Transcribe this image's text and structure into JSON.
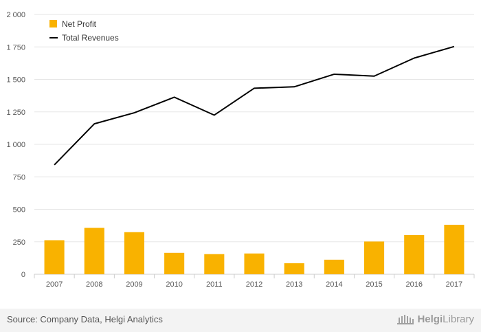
{
  "chart_data": {
    "type": "bar",
    "categories": [
      "2007",
      "2008",
      "2009",
      "2010",
      "2011",
      "2012",
      "2013",
      "2014",
      "2015",
      "2016",
      "2017"
    ],
    "series": [
      {
        "name": "Net Profit",
        "kind": "bar",
        "color": "#f9b200",
        "values": [
          262,
          357,
          324,
          165,
          155,
          160,
          85,
          112,
          252,
          302,
          381
        ]
      },
      {
        "name": "Total Revenues",
        "kind": "line",
        "color": "#000000",
        "values": [
          842,
          1158,
          1243,
          1363,
          1225,
          1432,
          1443,
          1540,
          1525,
          1664,
          1753
        ]
      }
    ],
    "ylim": [
      0,
      2000
    ],
    "yticks": [
      0,
      250,
      500,
      750,
      1000,
      1250,
      1500,
      1750,
      2000
    ],
    "ytick_labels": [
      "0",
      "250",
      "500",
      "750",
      "1 000",
      "1 250",
      "1 500",
      "1 750",
      "2 000"
    ],
    "grid": true,
    "legend_position": "top-left"
  },
  "legend": [
    {
      "label": "Net Profit",
      "color": "#f9b200",
      "marker": "square"
    },
    {
      "label": "Total Revenues",
      "color": "#000000",
      "marker": "line"
    }
  ],
  "footer": {
    "source": "Source: Company Data, Helgi Analytics",
    "brand_bold": "Helgi",
    "brand_light": "Library",
    "brand_icon": "library-building-icon"
  }
}
